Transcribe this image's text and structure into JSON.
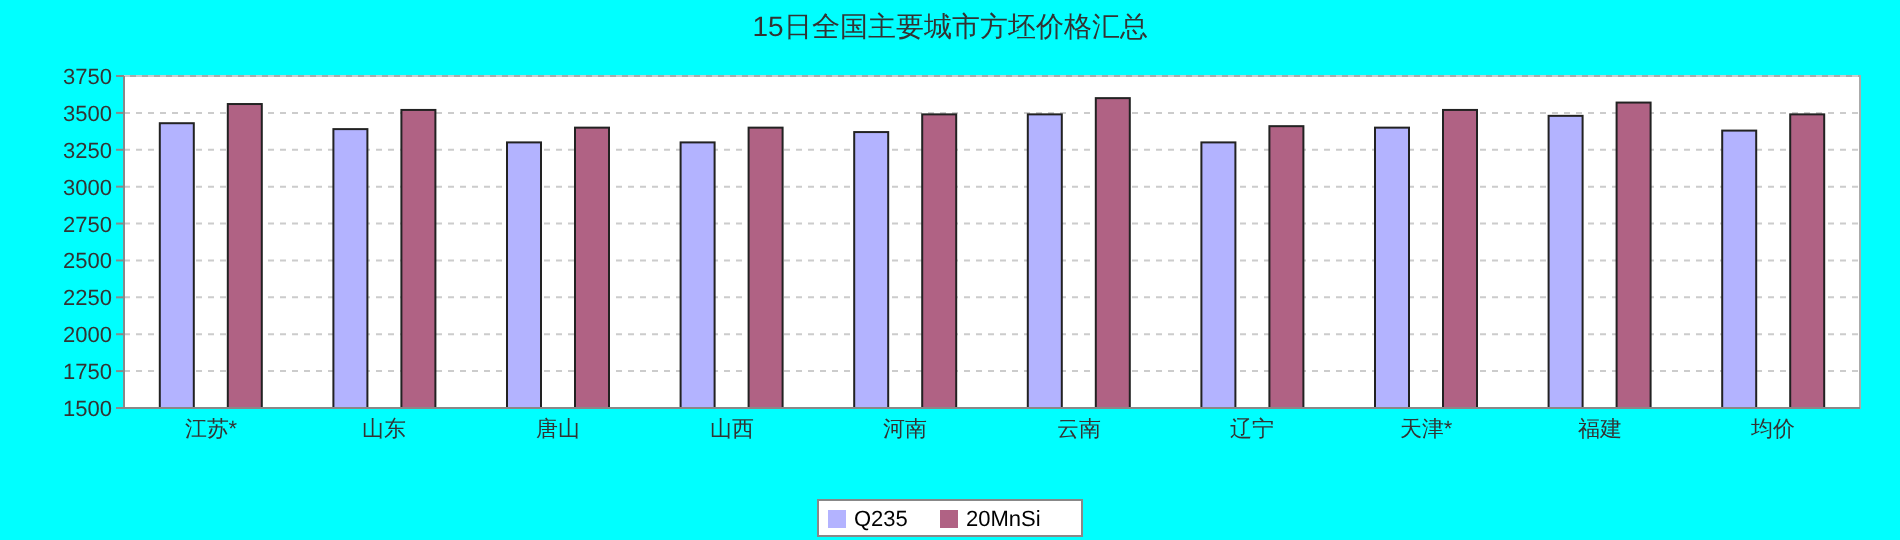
{
  "chart_data": {
    "type": "bar",
    "title": "15日全国主要城市方坯价格汇总",
    "categories": [
      "江苏*",
      "山东",
      "唐山",
      "山西",
      "河南",
      "云南",
      "辽宁",
      "天津*",
      "福建",
      "均价"
    ],
    "series": [
      {
        "name": "Q235",
        "color": "#b3b3ff",
        "values": [
          3430,
          3390,
          3300,
          3300,
          3370,
          3490,
          3300,
          3400,
          3480,
          3380
        ]
      },
      {
        "name": "20MnSi",
        "color": "#b06284",
        "values": [
          3560,
          3520,
          3400,
          3400,
          3490,
          3600,
          3410,
          3520,
          3570,
          3490
        ]
      }
    ],
    "ylim": [
      1500,
      3750
    ],
    "yticks": [
      1500,
      1750,
      2000,
      2250,
      2500,
      2750,
      3000,
      3250,
      3500,
      3750
    ],
    "grid": "y",
    "legend": "bottom"
  }
}
